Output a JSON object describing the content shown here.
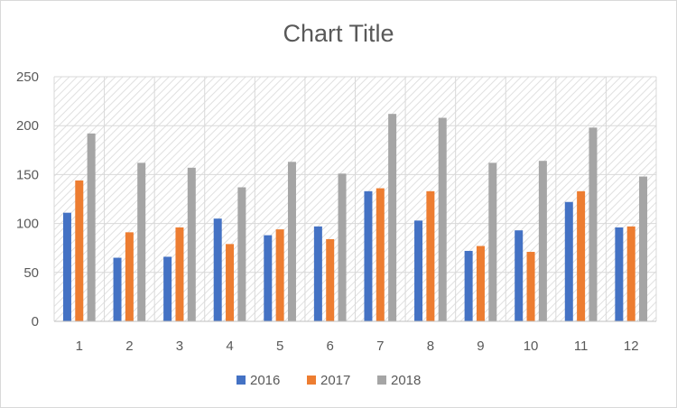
{
  "chart_data": {
    "type": "bar",
    "title": "Chart Title",
    "categories": [
      "1",
      "2",
      "3",
      "4",
      "5",
      "6",
      "7",
      "8",
      "9",
      "10",
      "11",
      "12"
    ],
    "series": [
      {
        "name": "2016",
        "color": "#4472C4",
        "values": [
          111,
          65,
          66,
          105,
          88,
          97,
          133,
          103,
          72,
          93,
          122,
          96
        ]
      },
      {
        "name": "2017",
        "color": "#ED7D31",
        "values": [
          144,
          91,
          96,
          79,
          94,
          84,
          136,
          133,
          77,
          71,
          133,
          97
        ]
      },
      {
        "name": "2018",
        "color": "#A5A5A5",
        "values": [
          192,
          162,
          157,
          137,
          163,
          151,
          212,
          208,
          162,
          164,
          198,
          148
        ]
      }
    ],
    "yticks": [
      "0",
      "50",
      "100",
      "150",
      "200",
      "250"
    ],
    "ylim": [
      0,
      250
    ],
    "xlabel": "",
    "ylabel": "",
    "grid": true,
    "legend_position": "bottom"
  }
}
